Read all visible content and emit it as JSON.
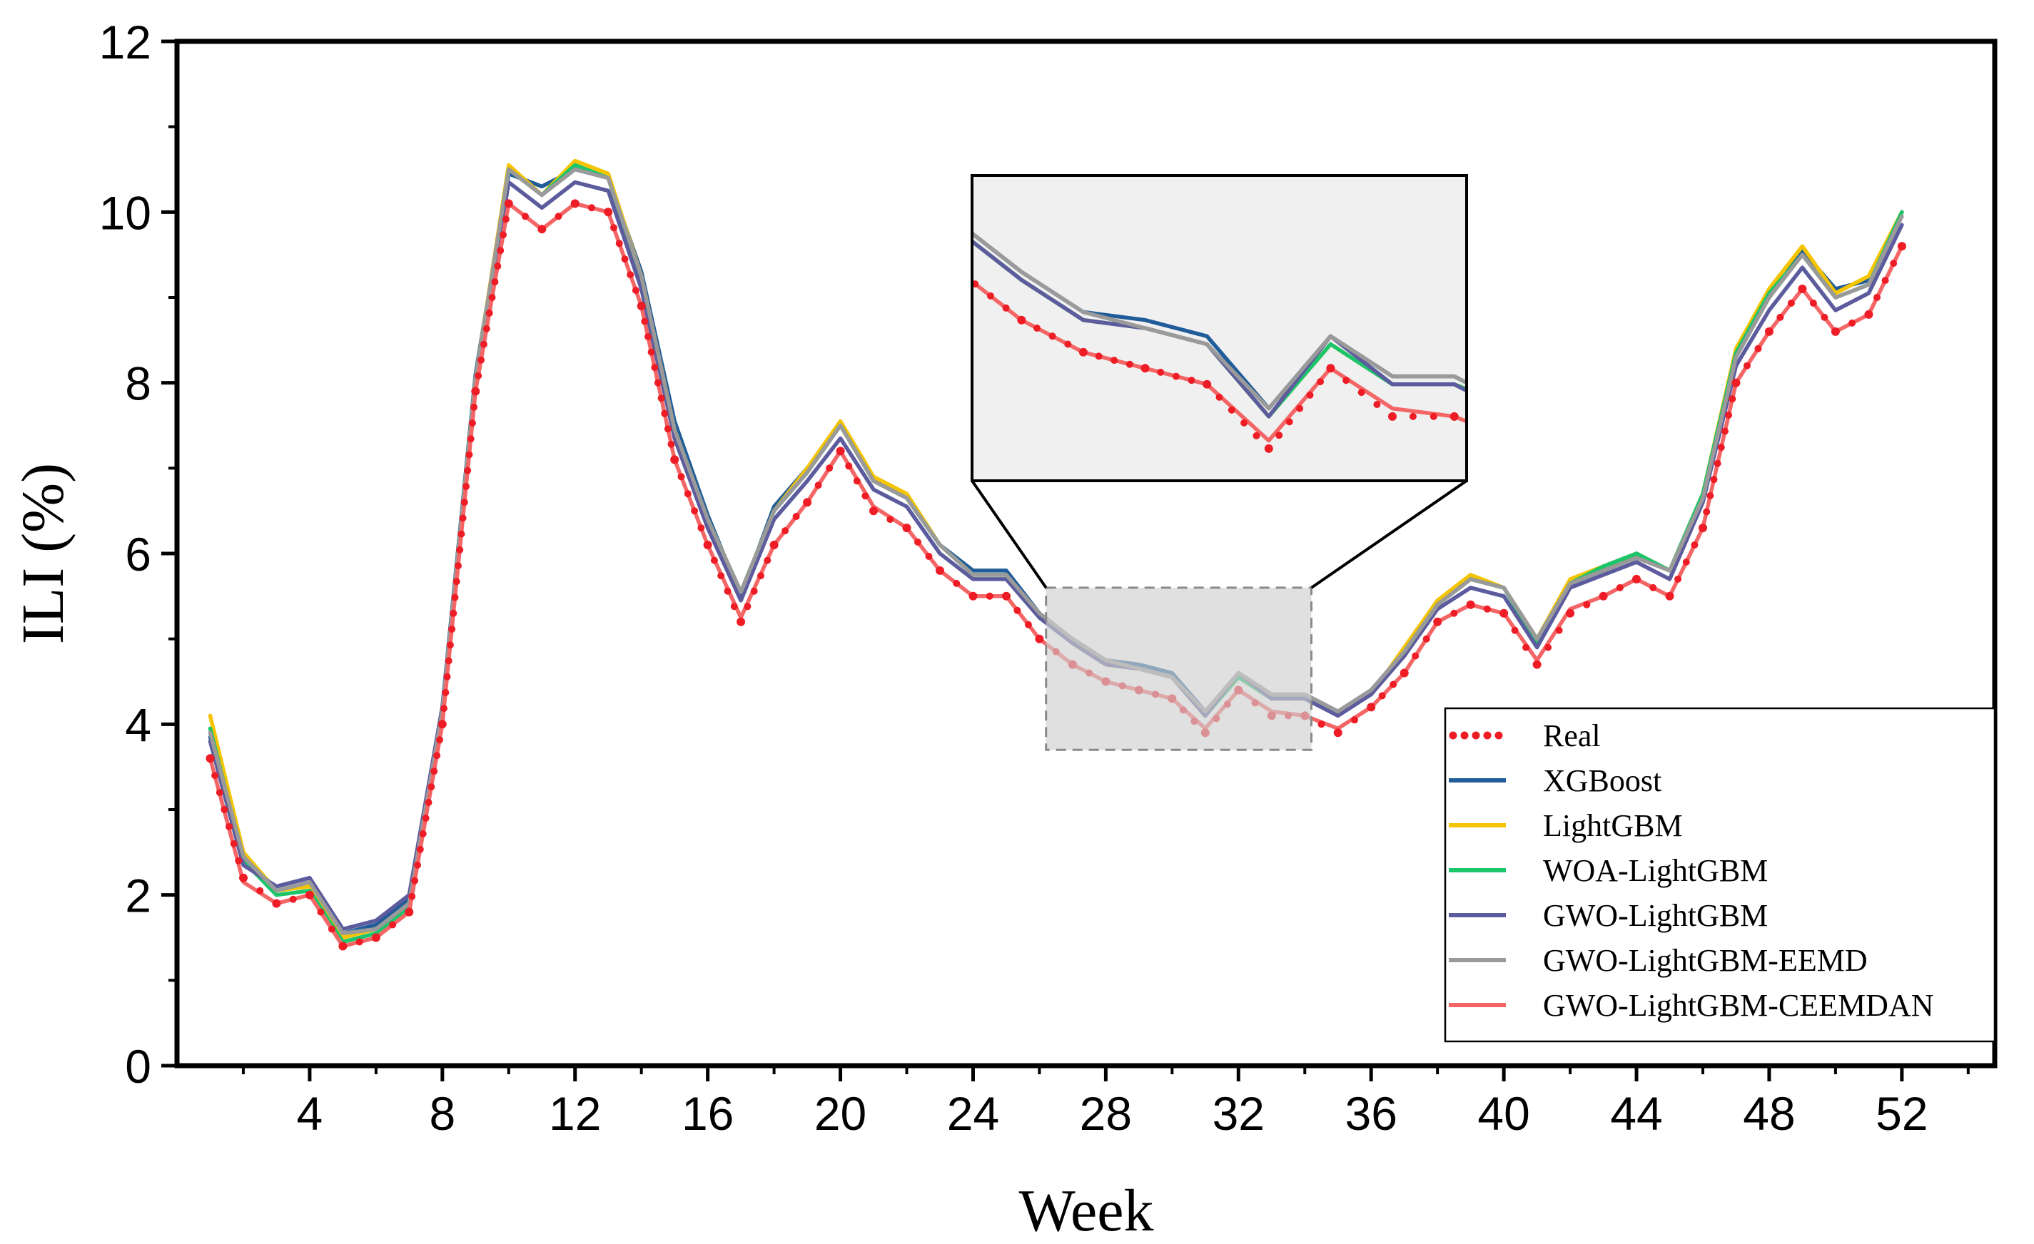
{
  "chart_data": {
    "type": "line",
    "title": "",
    "xlabel": "Week",
    "ylabel": "ILI (%)",
    "xlim": [
      0,
      54.8
    ],
    "ylim": [
      0,
      12
    ],
    "xticks": [
      4,
      8,
      12,
      16,
      20,
      24,
      28,
      32,
      36,
      40,
      44,
      48,
      52
    ],
    "yticks": [
      0,
      2,
      4,
      6,
      8,
      10,
      12
    ],
    "xtick_labels": [
      "4",
      "8",
      "12",
      "16",
      "20",
      "24",
      "28",
      "32",
      "36",
      "40",
      "44",
      "48",
      "52"
    ],
    "ytick_labels": [
      "0",
      "2",
      "4",
      "6",
      "8",
      "10",
      "12"
    ],
    "legend_position": "bottom-right",
    "inset": {
      "x_range": [
        26.2,
        34.2
      ],
      "y_range": [
        3.7,
        5.6
      ],
      "placement": "upper-middle"
    },
    "x": [
      1,
      2,
      3,
      4,
      5,
      6,
      7,
      8,
      9,
      10,
      11,
      12,
      13,
      14,
      15,
      16,
      17,
      18,
      19,
      20,
      21,
      22,
      23,
      24,
      25,
      26,
      27,
      28,
      29,
      30,
      31,
      32,
      33,
      34,
      35,
      36,
      37,
      38,
      39,
      40,
      41,
      42,
      43,
      44,
      45,
      46,
      47,
      48,
      49,
      50,
      51,
      52
    ],
    "series": [
      {
        "name": "Real",
        "color": "#ee1c25",
        "style": "dotted",
        "values": [
          3.6,
          2.2,
          1.9,
          2.0,
          1.4,
          1.5,
          1.8,
          4.0,
          7.9,
          10.1,
          9.8,
          10.1,
          10.0,
          8.9,
          7.1,
          6.1,
          5.2,
          6.1,
          6.6,
          7.2,
          6.5,
          6.3,
          5.8,
          5.5,
          5.5,
          5.0,
          4.7,
          4.5,
          4.4,
          4.3,
          3.9,
          4.4,
          4.1,
          4.1,
          3.9,
          4.2,
          4.6,
          5.2,
          5.4,
          5.3,
          4.7,
          5.3,
          5.5,
          5.7,
          5.5,
          6.3,
          8.0,
          8.6,
          9.1,
          8.6,
          8.8,
          9.6
        ]
      },
      {
        "name": "XGBoost",
        "color": "#1f5c99",
        "style": "solid",
        "values": [
          3.85,
          2.45,
          2.05,
          2.15,
          1.55,
          1.65,
          1.95,
          4.2,
          8.1,
          10.45,
          10.3,
          10.5,
          10.4,
          9.3,
          7.55,
          6.45,
          5.5,
          6.55,
          7.0,
          7.5,
          6.85,
          6.65,
          6.1,
          5.8,
          5.8,
          5.3,
          5.0,
          4.75,
          4.7,
          4.6,
          4.15,
          4.6,
          4.35,
          4.35,
          4.15,
          4.4,
          4.85,
          5.45,
          5.7,
          5.6,
          5.0,
          5.65,
          5.8,
          6.0,
          5.8,
          6.65,
          8.35,
          9.0,
          9.55,
          9.1,
          9.2,
          10.0
        ]
      },
      {
        "name": "LightGBM",
        "color": "#f5c400",
        "style": "solid",
        "values": [
          4.1,
          2.5,
          2.05,
          2.1,
          1.5,
          1.6,
          1.9,
          4.15,
          8.05,
          10.55,
          10.2,
          10.6,
          10.45,
          9.25,
          7.45,
          6.4,
          5.55,
          6.5,
          7.0,
          7.55,
          6.9,
          6.7,
          6.1,
          5.75,
          5.75,
          5.25,
          4.95,
          4.7,
          4.65,
          4.55,
          4.1,
          4.55,
          4.3,
          4.3,
          4.15,
          4.35,
          4.9,
          5.45,
          5.75,
          5.6,
          5.0,
          5.7,
          5.85,
          6.0,
          5.8,
          6.7,
          8.4,
          9.1,
          9.6,
          9.05,
          9.25,
          10.0
        ]
      },
      {
        "name": "WOA-LightGBM",
        "color": "#1cc46a",
        "style": "solid",
        "values": [
          3.95,
          2.4,
          2.0,
          2.05,
          1.45,
          1.55,
          1.85,
          4.1,
          8.0,
          10.5,
          10.2,
          10.55,
          10.4,
          9.2,
          7.45,
          6.4,
          5.55,
          6.5,
          6.95,
          7.5,
          6.85,
          6.65,
          6.1,
          5.75,
          5.75,
          5.25,
          4.95,
          4.7,
          4.65,
          4.55,
          4.1,
          4.55,
          4.3,
          4.3,
          4.15,
          4.35,
          4.85,
          5.4,
          5.7,
          5.6,
          4.95,
          5.65,
          5.85,
          6.0,
          5.8,
          6.7,
          8.35,
          9.05,
          9.5,
          9.0,
          9.15,
          10.0
        ]
      },
      {
        "name": "GWO-LightGBM",
        "color": "#5b5b9e",
        "style": "solid",
        "values": [
          3.8,
          2.35,
          2.1,
          2.2,
          1.6,
          1.7,
          2.0,
          4.2,
          7.95,
          10.35,
          10.05,
          10.35,
          10.25,
          9.1,
          7.35,
          6.3,
          5.45,
          6.4,
          6.85,
          7.35,
          6.75,
          6.55,
          6.0,
          5.7,
          5.7,
          5.25,
          4.95,
          4.7,
          4.65,
          4.55,
          4.1,
          4.6,
          4.3,
          4.3,
          4.1,
          4.35,
          4.8,
          5.35,
          5.6,
          5.5,
          4.9,
          5.6,
          5.75,
          5.9,
          5.7,
          6.6,
          8.2,
          8.85,
          9.35,
          8.85,
          9.05,
          9.85
        ]
      },
      {
        "name": "GWO-LightGBM-EEMD",
        "color": "#9a9a9a",
        "style": "solid",
        "values": [
          3.9,
          2.45,
          2.05,
          2.15,
          1.55,
          1.6,
          1.9,
          4.15,
          8.05,
          10.5,
          10.2,
          10.5,
          10.4,
          9.25,
          7.45,
          6.4,
          5.55,
          6.5,
          6.95,
          7.5,
          6.85,
          6.65,
          6.1,
          5.75,
          5.75,
          5.3,
          5.0,
          4.75,
          4.65,
          4.55,
          4.15,
          4.6,
          4.35,
          4.35,
          4.15,
          4.4,
          4.85,
          5.4,
          5.7,
          5.6,
          5.0,
          5.65,
          5.8,
          5.95,
          5.8,
          6.65,
          8.3,
          9.0,
          9.5,
          9.0,
          9.15,
          9.95
        ]
      },
      {
        "name": "GWO-LightGBM-CEEMDAN",
        "color": "#f46666",
        "style": "solid",
        "values": [
          3.6,
          2.15,
          1.9,
          2.0,
          1.4,
          1.5,
          1.8,
          4.0,
          7.9,
          10.1,
          9.8,
          10.1,
          10.0,
          8.9,
          7.1,
          6.1,
          5.25,
          6.1,
          6.6,
          7.2,
          6.55,
          6.3,
          5.8,
          5.5,
          5.5,
          5.0,
          4.7,
          4.5,
          4.4,
          4.3,
          3.95,
          4.4,
          4.15,
          4.1,
          3.95,
          4.2,
          4.6,
          5.2,
          5.4,
          5.3,
          4.75,
          5.35,
          5.5,
          5.7,
          5.5,
          6.3,
          8.0,
          8.6,
          9.1,
          8.6,
          8.8,
          9.6
        ]
      }
    ]
  }
}
